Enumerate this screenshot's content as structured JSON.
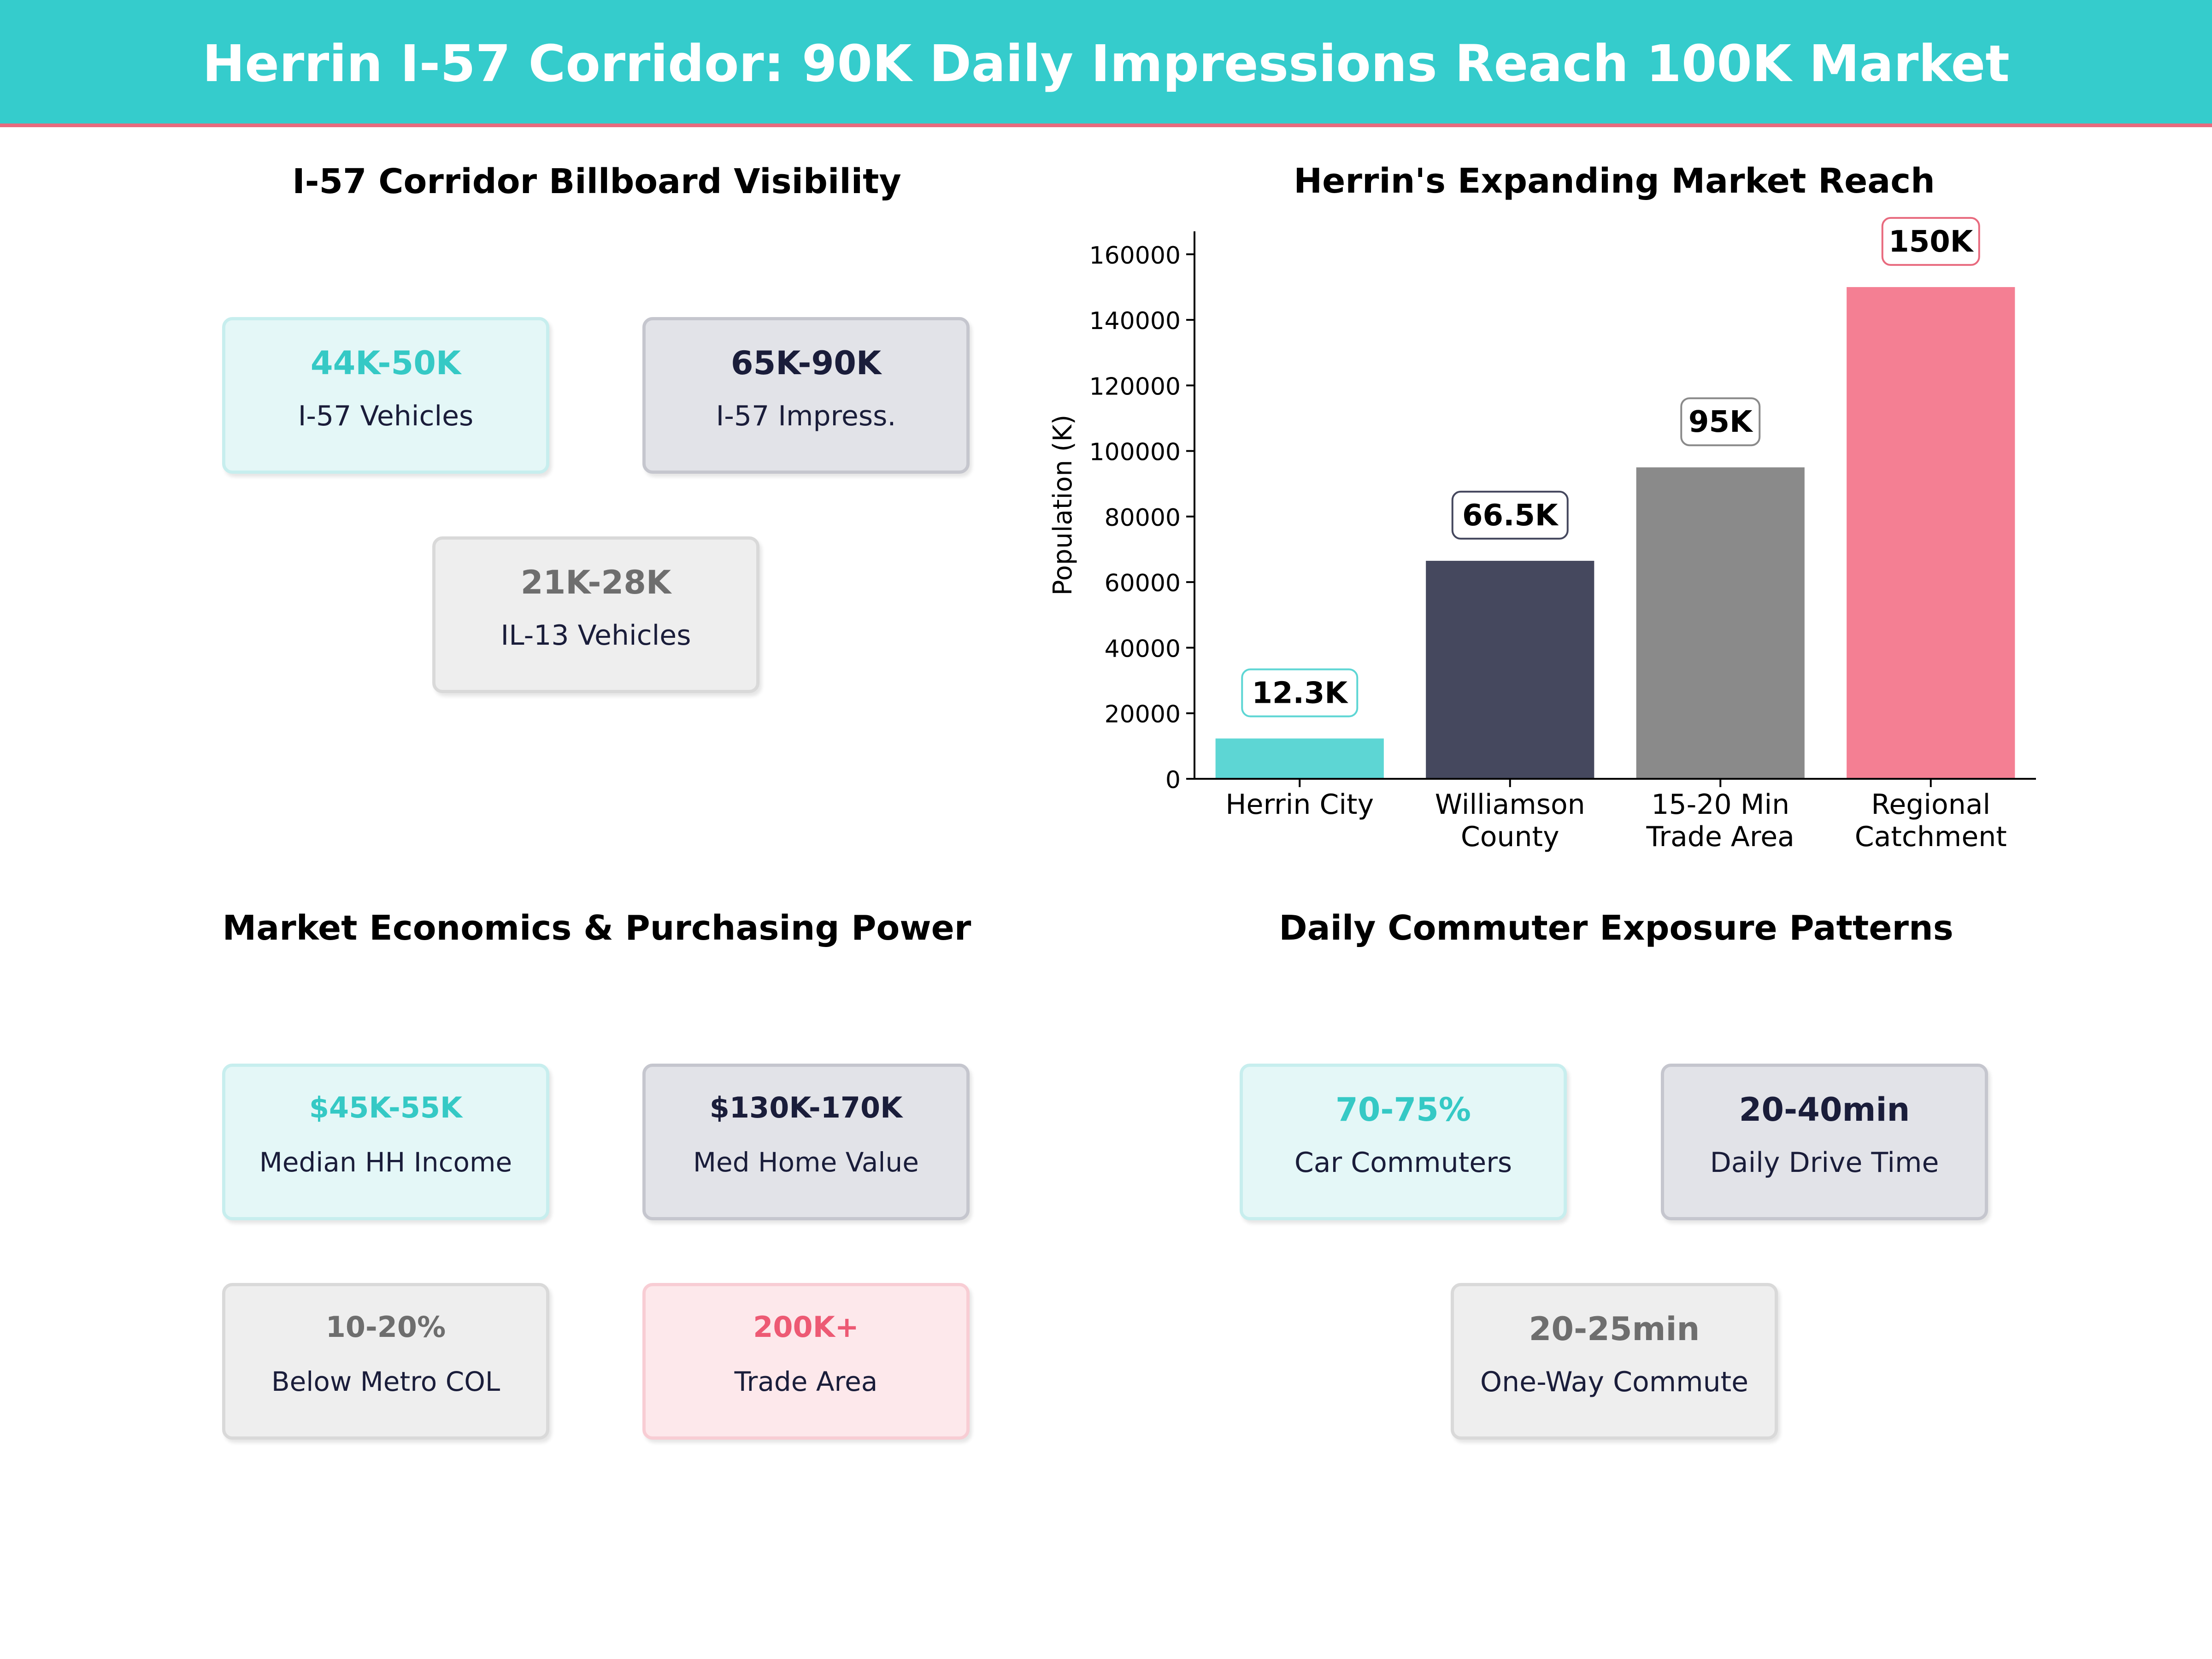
{
  "header": {
    "title": "Herrin I-57 Corridor: 90K Daily Impressions Reach 100K Market"
  },
  "visibility": {
    "title": "I-57 Corridor Billboard Visibility",
    "cards": [
      {
        "value": "44K-50K",
        "label": "I-57  Vehicles"
      },
      {
        "value": "65K-90K",
        "label": "I-57  Impress."
      },
      {
        "value": "21K-28K",
        "label": "IL-13  Vehicles"
      }
    ]
  },
  "economics": {
    "title": "Market Economics & Purchasing Power",
    "cards": [
      {
        "value": "$45K-55K",
        "label": "Median HH Income"
      },
      {
        "value": "$130K-170K",
        "label": "Med Home Value"
      },
      {
        "value": "10-20%",
        "label": "Below Metro COL"
      },
      {
        "value": "200K+",
        "label": "Trade Area"
      }
    ]
  },
  "commuter": {
    "title": "Daily Commuter Exposure Patterns",
    "cards": [
      {
        "value": "70-75%",
        "label": "Car Commuters"
      },
      {
        "value": "20-40min",
        "label": "Daily Drive Time"
      },
      {
        "value": "20-25min",
        "label": "One-Way Commute"
      }
    ]
  },
  "colors": {
    "teal": "#5dd6d4",
    "navy": "#45485e",
    "gray": "#8a8a8a",
    "pink": "#f47f93"
  },
  "chart_data": {
    "type": "bar",
    "title": "Herrin's Expanding Market Reach",
    "xlabel": "",
    "ylabel": "Population (K)",
    "ylim": [
      0,
      167000
    ],
    "yticks": [
      0,
      20000,
      40000,
      60000,
      80000,
      100000,
      120000,
      140000,
      160000
    ],
    "categories": [
      [
        "Herrin City"
      ],
      [
        "Williamson",
        "County"
      ],
      [
        "15-20 Min",
        "Trade Area"
      ],
      [
        "Regional",
        "Catchment"
      ]
    ],
    "values": [
      12300,
      66500,
      95000,
      150000
    ],
    "data_labels": [
      "12.3K",
      "66.5K",
      "95K",
      "150K"
    ],
    "bar_colors": [
      "#5dd6d4",
      "#45485e",
      "#8a8a8a",
      "#f47f93"
    ],
    "label_border_colors": [
      "#5dd6d4",
      "#45485e",
      "#8a8a8a",
      "#e86a7e"
    ]
  }
}
